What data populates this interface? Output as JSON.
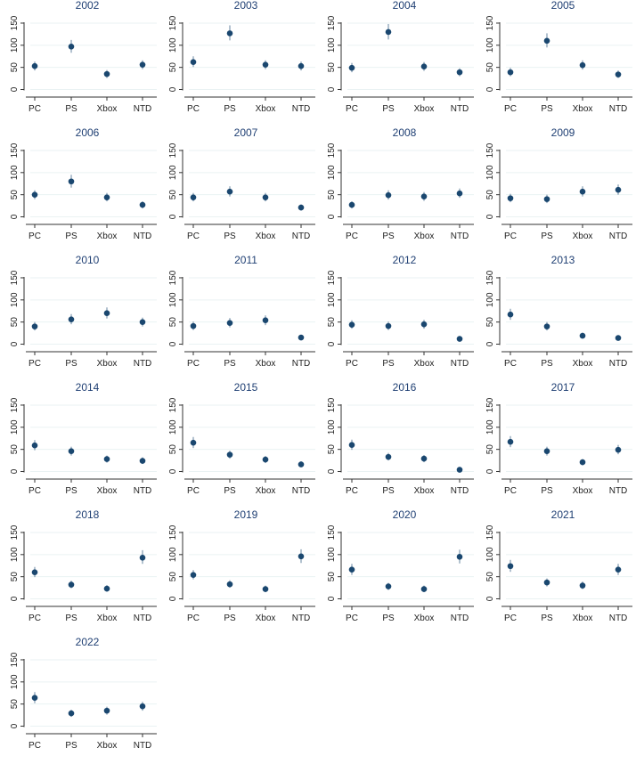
{
  "chart_data": {
    "type": "scatter",
    "subtype": "point estimates with confidence intervals, small multiples",
    "categories": [
      "PC",
      "PS",
      "Xbox",
      "NTD"
    ],
    "yticks": [
      0,
      50,
      100,
      150
    ],
    "ylim": [
      -5,
      160
    ],
    "grid": true,
    "colors": {
      "marker": "#1a476f",
      "error_bar": "#1a476f",
      "gridline": "#eaf2f3",
      "title": "#1f3f73"
    },
    "panels": [
      {
        "title": "2002",
        "values": [
          53,
          97,
          35,
          56
        ],
        "ci": [
          [
            43,
            63
          ],
          [
            83,
            112
          ],
          [
            26,
            44
          ],
          [
            46,
            66
          ]
        ]
      },
      {
        "title": "2003",
        "values": [
          62,
          127,
          56,
          53
        ],
        "ci": [
          [
            51,
            75
          ],
          [
            111,
            145
          ],
          [
            46,
            66
          ],
          [
            43,
            63
          ]
        ]
      },
      {
        "title": "2004",
        "values": [
          49,
          130,
          52,
          39
        ],
        "ci": [
          [
            39,
            60
          ],
          [
            113,
            148
          ],
          [
            42,
            62
          ],
          [
            30,
            48
          ]
        ]
      },
      {
        "title": "2005",
        "values": [
          39,
          110,
          55,
          34
        ],
        "ci": [
          [
            30,
            49
          ],
          [
            95,
            127
          ],
          [
            45,
            66
          ],
          [
            26,
            43
          ]
        ]
      },
      {
        "title": "2006",
        "values": [
          50,
          80,
          44,
          27
        ],
        "ci": [
          [
            40,
            60
          ],
          [
            66,
            95
          ],
          [
            35,
            54
          ],
          [
            19,
            35
          ]
        ]
      },
      {
        "title": "2007",
        "values": [
          44,
          57,
          44,
          21
        ],
        "ci": [
          [
            35,
            54
          ],
          [
            46,
            69
          ],
          [
            35,
            54
          ],
          [
            14,
            28
          ]
        ]
      },
      {
        "title": "2008",
        "values": [
          27,
          49,
          46,
          53
        ],
        "ci": [
          [
            19,
            35
          ],
          [
            39,
            60
          ],
          [
            36,
            56
          ],
          [
            43,
            64
          ]
        ]
      },
      {
        "title": "2009",
        "values": [
          42,
          40,
          57,
          61
        ],
        "ci": [
          [
            33,
            52
          ],
          [
            31,
            50
          ],
          [
            46,
            69
          ],
          [
            50,
            73
          ]
        ]
      },
      {
        "title": "2010",
        "values": [
          40,
          56,
          70,
          50
        ],
        "ci": [
          [
            31,
            50
          ],
          [
            45,
            68
          ],
          [
            58,
            83
          ],
          [
            40,
            60
          ]
        ]
      },
      {
        "title": "2011",
        "values": [
          41,
          48,
          54,
          15
        ],
        "ci": [
          [
            32,
            51
          ],
          [
            38,
            59
          ],
          [
            43,
            65
          ],
          [
            9,
            21
          ]
        ]
      },
      {
        "title": "2012",
        "values": [
          44,
          41,
          45,
          12
        ],
        "ci": [
          [
            35,
            54
          ],
          [
            32,
            51
          ],
          [
            35,
            55
          ],
          [
            7,
            18
          ]
        ]
      },
      {
        "title": "2013",
        "values": [
          67,
          40,
          19,
          14
        ],
        "ci": [
          [
            55,
            80
          ],
          [
            31,
            50
          ],
          [
            13,
            26
          ],
          [
            9,
            20
          ]
        ]
      },
      {
        "title": "2014",
        "values": [
          59,
          46,
          28,
          24
        ],
        "ci": [
          [
            48,
            71
          ],
          [
            36,
            56
          ],
          [
            20,
            36
          ],
          [
            17,
            32
          ]
        ]
      },
      {
        "title": "2015",
        "values": [
          65,
          38,
          27,
          16
        ],
        "ci": [
          [
            53,
            78
          ],
          [
            29,
            47
          ],
          [
            19,
            35
          ],
          [
            10,
            23
          ]
        ]
      },
      {
        "title": "2016",
        "values": [
          60,
          33,
          29,
          4
        ],
        "ci": [
          [
            49,
            72
          ],
          [
            25,
            42
          ],
          [
            21,
            37
          ],
          [
            1,
            8
          ]
        ]
      },
      {
        "title": "2017",
        "values": [
          67,
          46,
          21,
          49
        ],
        "ci": [
          [
            55,
            80
          ],
          [
            36,
            56
          ],
          [
            14,
            28
          ],
          [
            39,
            60
          ]
        ]
      },
      {
        "title": "2018",
        "values": [
          60,
          32,
          23,
          93
        ],
        "ci": [
          [
            49,
            72
          ],
          [
            24,
            41
          ],
          [
            16,
            31
          ],
          [
            79,
            110
          ]
        ]
      },
      {
        "title": "2019",
        "values": [
          54,
          33,
          22,
          96
        ],
        "ci": [
          [
            44,
            65
          ],
          [
            25,
            42
          ],
          [
            15,
            30
          ],
          [
            81,
            112
          ]
        ]
      },
      {
        "title": "2020",
        "values": [
          66,
          28,
          22,
          95
        ],
        "ci": [
          [
            54,
            79
          ],
          [
            20,
            36
          ],
          [
            15,
            30
          ],
          [
            80,
            111
          ]
        ]
      },
      {
        "title": "2021",
        "values": [
          74,
          37,
          30,
          66
        ],
        "ci": [
          [
            61,
            88
          ],
          [
            28,
            46
          ],
          [
            22,
            39
          ],
          [
            54,
            79
          ]
        ]
      },
      {
        "title": "2022",
        "values": [
          64,
          29,
          35,
          45
        ],
        "ci": [
          [
            52,
            77
          ],
          [
            21,
            37
          ],
          [
            26,
            44
          ],
          [
            35,
            55
          ]
        ]
      }
    ]
  }
}
